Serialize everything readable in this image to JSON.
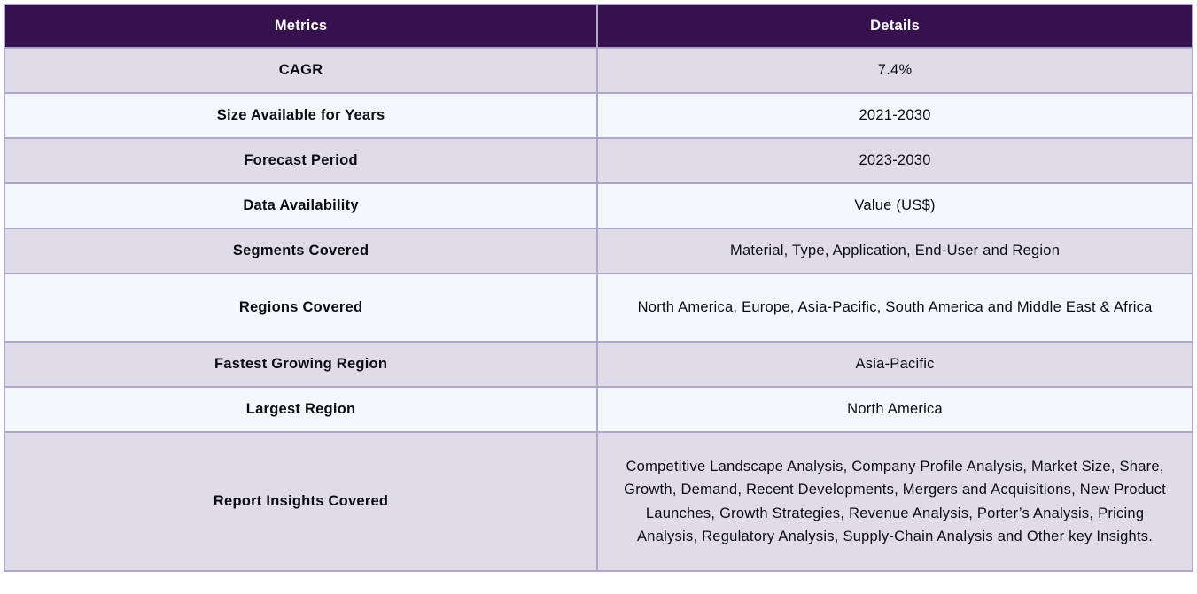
{
  "table": {
    "header": {
      "metrics_label": "Metrics",
      "details_label": "Details"
    },
    "rows": [
      {
        "metric": "CAGR",
        "detail": "7.4%"
      },
      {
        "metric": "Size Available for Years",
        "detail": "2021-2030"
      },
      {
        "metric": "Forecast Period",
        "detail": "2023-2030"
      },
      {
        "metric": "Data Availability",
        "detail": "Value (US$)"
      },
      {
        "metric": "Segments Covered",
        "detail": "Material, Type, Application, End-User and Region"
      },
      {
        "metric": "Regions Covered",
        "detail": "North America, Europe, Asia-Pacific, South America and Middle East & Africa"
      },
      {
        "metric": "Fastest Growing Region",
        "detail": "Asia-Pacific"
      },
      {
        "metric": "Largest Region",
        "detail": "North America"
      },
      {
        "metric": "Report Insights Covered",
        "detail": "Competitive Landscape Analysis, Company Profile Analysis, Market Size, Share, Growth, Demand, Recent Developments, Mergers and Acquisitions, New Product Launches, Growth Strategies, Revenue Analysis, Porter’s Analysis, Pricing Analysis, Regulatory Analysis, Supply-Chain Analysis and Other key Insights."
      }
    ],
    "colors": {
      "header_bg": "#36114d",
      "header_text": "#ffffff",
      "row_alt_bg": "#dfdbe9",
      "row_bg": "#f3f8fa",
      "border": "#aea6c6",
      "text": "#0b0b10",
      "page_bg": "#ffffff"
    }
  }
}
